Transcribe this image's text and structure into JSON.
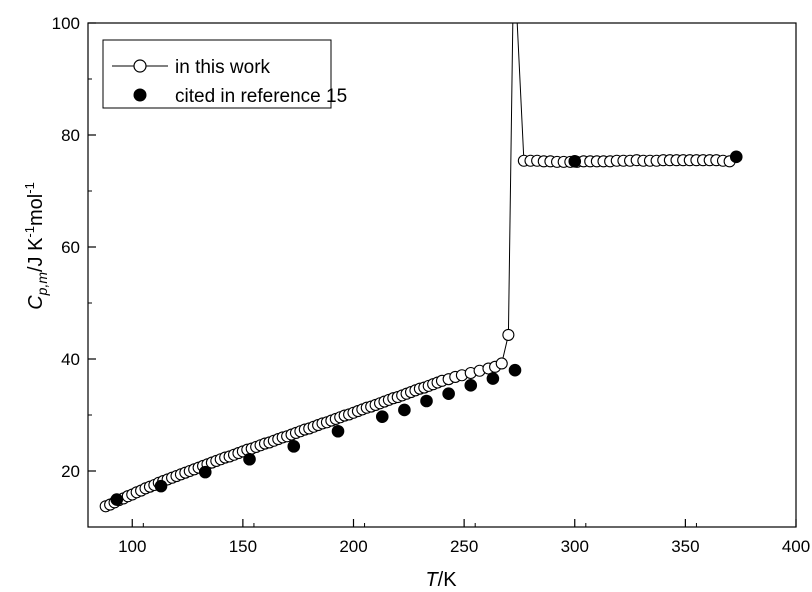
{
  "chart_data": {
    "type": "scatter",
    "title": "",
    "xlabel": {
      "italic": "T",
      "rest": "/K"
    },
    "ylabel": {
      "main": "C",
      "sub": "p,m",
      "unit": "/J K",
      "unit_sup": "-1",
      "unit2": "mol",
      "unit2_sup": "-1"
    },
    "xlim": [
      80,
      400
    ],
    "ylim": [
      10,
      100
    ],
    "x_ticks": [
      100,
      150,
      200,
      250,
      300,
      350,
      400
    ],
    "x_tick_labels": [
      "100",
      "150",
      "200",
      "250",
      "300",
      "350",
      "400"
    ],
    "y_ticks": [
      20,
      40,
      60,
      80,
      100
    ],
    "y_tick_labels": [
      "20",
      "40",
      "60",
      "80",
      "100"
    ],
    "grid": false,
    "legend_position": "top-left",
    "series": [
      {
        "name": "in this work",
        "marker": "open-circle",
        "line": true,
        "color": "#000000",
        "points": [
          [
            88,
            13.7
          ],
          [
            90,
            14.0
          ],
          [
            92,
            14.4
          ],
          [
            94,
            14.8
          ],
          [
            96,
            15.1
          ],
          [
            98,
            15.5
          ],
          [
            100,
            15.8
          ],
          [
            102,
            16.2
          ],
          [
            104,
            16.5
          ],
          [
            106,
            16.9
          ],
          [
            108,
            17.2
          ],
          [
            110,
            17.5
          ],
          [
            112,
            17.9
          ],
          [
            114,
            18.2
          ],
          [
            116,
            18.5
          ],
          [
            118,
            18.8
          ],
          [
            120,
            19.1
          ],
          [
            122,
            19.4
          ],
          [
            124,
            19.7
          ],
          [
            126,
            20.0
          ],
          [
            128,
            20.3
          ],
          [
            130,
            20.6
          ],
          [
            132,
            20.9
          ],
          [
            134,
            21.2
          ],
          [
            136,
            21.5
          ],
          [
            138,
            21.8
          ],
          [
            140,
            22.1
          ],
          [
            142,
            22.4
          ],
          [
            144,
            22.6
          ],
          [
            146,
            22.9
          ],
          [
            148,
            23.2
          ],
          [
            150,
            23.5
          ],
          [
            152,
            23.8
          ],
          [
            154,
            24.0
          ],
          [
            156,
            24.3
          ],
          [
            158,
            24.6
          ],
          [
            160,
            24.9
          ],
          [
            162,
            25.1
          ],
          [
            164,
            25.4
          ],
          [
            166,
            25.7
          ],
          [
            168,
            26.0
          ],
          [
            170,
            26.2
          ],
          [
            172,
            26.5
          ],
          [
            174,
            26.8
          ],
          [
            176,
            27.1
          ],
          [
            178,
            27.4
          ],
          [
            180,
            27.6
          ],
          [
            182,
            27.9
          ],
          [
            184,
            28.2
          ],
          [
            186,
            28.5
          ],
          [
            188,
            28.7
          ],
          [
            190,
            29.0
          ],
          [
            192,
            29.3
          ],
          [
            194,
            29.6
          ],
          [
            196,
            29.9
          ],
          [
            198,
            30.1
          ],
          [
            200,
            30.4
          ],
          [
            202,
            30.7
          ],
          [
            204,
            31.0
          ],
          [
            206,
            31.3
          ],
          [
            208,
            31.5
          ],
          [
            210,
            31.8
          ],
          [
            212,
            32.1
          ],
          [
            214,
            32.4
          ],
          [
            216,
            32.7
          ],
          [
            218,
            33.0
          ],
          [
            220,
            33.2
          ],
          [
            222,
            33.5
          ],
          [
            224,
            33.8
          ],
          [
            226,
            34.1
          ],
          [
            228,
            34.4
          ],
          [
            230,
            34.7
          ],
          [
            232,
            34.9
          ],
          [
            234,
            35.2
          ],
          [
            236,
            35.5
          ],
          [
            238,
            35.8
          ],
          [
            240,
            36.1
          ],
          [
            243,
            36.4
          ],
          [
            246,
            36.8
          ],
          [
            249,
            37.1
          ],
          [
            253,
            37.5
          ],
          [
            257,
            37.9
          ],
          [
            261,
            38.3
          ],
          [
            264,
            38.6
          ],
          [
            267,
            39.2
          ],
          [
            270,
            44.3
          ],
          [
            277,
            75.4
          ],
          [
            280,
            75.4
          ],
          [
            283,
            75.4
          ],
          [
            286,
            75.3
          ],
          [
            289,
            75.3
          ],
          [
            292,
            75.2
          ],
          [
            295,
            75.2
          ],
          [
            298,
            75.2
          ],
          [
            301,
            75.2
          ],
          [
            304,
            75.3
          ],
          [
            307,
            75.3
          ],
          [
            310,
            75.3
          ],
          [
            313,
            75.3
          ],
          [
            316,
            75.3
          ],
          [
            319,
            75.4
          ],
          [
            322,
            75.4
          ],
          [
            325,
            75.4
          ],
          [
            328,
            75.5
          ],
          [
            331,
            75.4
          ],
          [
            334,
            75.4
          ],
          [
            337,
            75.4
          ],
          [
            340,
            75.5
          ],
          [
            343,
            75.5
          ],
          [
            346,
            75.5
          ],
          [
            349,
            75.5
          ],
          [
            352,
            75.5
          ],
          [
            355,
            75.5
          ],
          [
            358,
            75.5
          ],
          [
            361,
            75.5
          ],
          [
            364,
            75.5
          ],
          [
            367,
            75.4
          ],
          [
            370,
            75.3
          ]
        ],
        "peak": {
          "x_start": 270,
          "x_top": 272,
          "x_end": 277,
          "y_top": 100
        }
      },
      {
        "name": "cited in reference 15",
        "marker": "filled-circle",
        "line": false,
        "color": "#000000",
        "points": [
          [
            93,
            14.9
          ],
          [
            113,
            17.3
          ],
          [
            133,
            19.8
          ],
          [
            153,
            22.1
          ],
          [
            173,
            24.4
          ],
          [
            193,
            27.1
          ],
          [
            213,
            29.7
          ],
          [
            223,
            30.9
          ],
          [
            233,
            32.5
          ],
          [
            243,
            33.8
          ],
          [
            253,
            35.3
          ],
          [
            263,
            36.5
          ],
          [
            273,
            38.0
          ],
          [
            300,
            75.3
          ],
          [
            373,
            76.1
          ]
        ]
      }
    ]
  }
}
